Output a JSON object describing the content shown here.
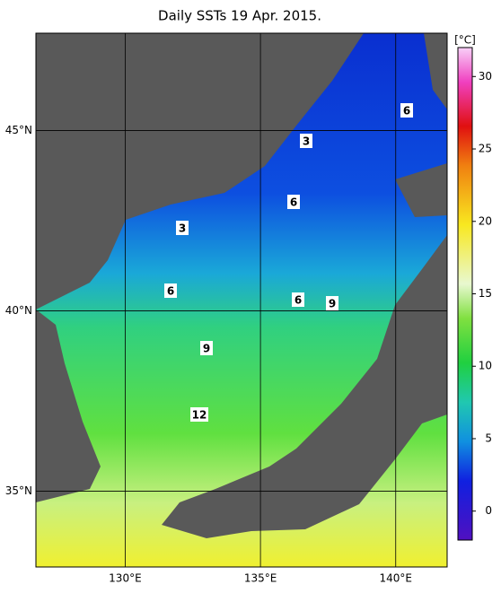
{
  "title": "Daily SSTs 19 Apr. 2015.",
  "map": {
    "xlim": [
      126.7,
      141.9
    ],
    "ylim": [
      32.9,
      47.7
    ],
    "xticks": [
      {
        "value": 130,
        "label": "130°E"
      },
      {
        "value": 135,
        "label": "135°E"
      },
      {
        "value": 140,
        "label": "140°E"
      }
    ],
    "yticks": [
      {
        "value": 35,
        "label": "35°N"
      },
      {
        "value": 40,
        "label": "40°N"
      },
      {
        "value": 45,
        "label": "45°N"
      }
    ]
  },
  "contour_labels": [
    "6",
    "3",
    "6",
    "3",
    "6",
    "6",
    "9",
    "9",
    "12"
  ],
  "colorbar": {
    "unit": "[°C]",
    "lim": [
      -2,
      32
    ],
    "ticks": [
      0,
      5,
      10,
      15,
      20,
      25,
      30
    ]
  }
}
